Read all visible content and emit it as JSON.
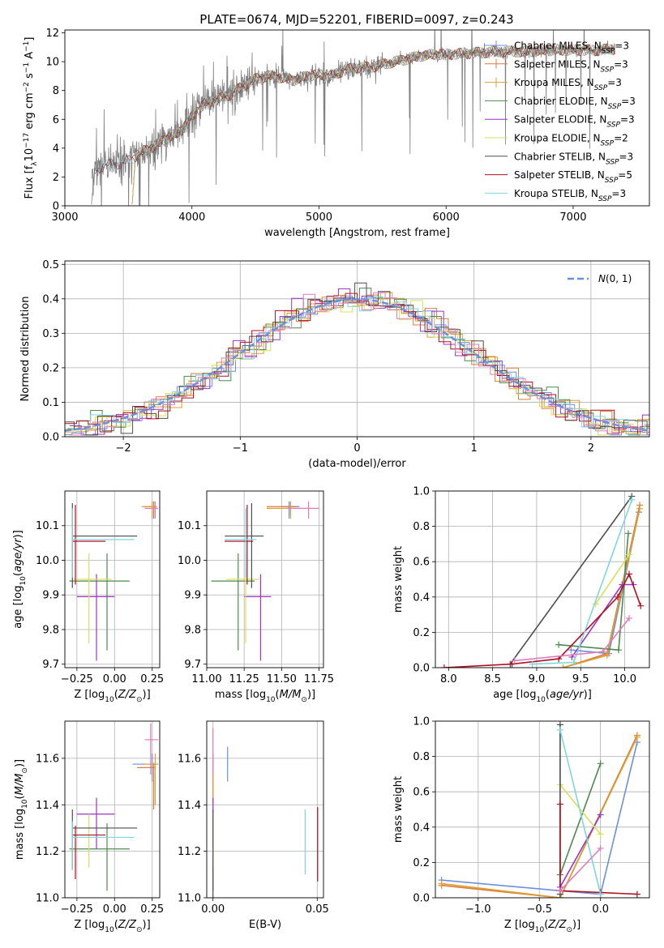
{
  "figure_title": "PLATE=0674, MJD=52201, FIBERID=0097, z=0.243",
  "colors": {
    "data": "#808080",
    "chabrier_miles": "#6f8fdc",
    "salpeter_miles": "#e07b39",
    "kroupa_miles": "#d9a030",
    "chabrier_elodie": "#4e8a4e",
    "salpeter_elodie": "#9b35c4",
    "kroupa_elodie": "#d8e05a",
    "chabrier_stelib": "#4d4d4d",
    "salpeter_stelib": "#b01020",
    "kroupa_stelib": "#7fd6e0",
    "pink": "#e07bc0",
    "gauss": "#6a8fdc",
    "grid": "#b0b0b0"
  },
  "chart_data": [
    {
      "id": "spectrum",
      "type": "line",
      "title": "PLATE=0674, MJD=52201, FIBERID=0097, z=0.243",
      "xlabel": "wavelength [Angstrom, rest frame]",
      "ylabel": "Flux [f_λ 10^-17 erg cm^-2 s^-1 A^-1]",
      "xlim": [
        3000,
        7600
      ],
      "ylim": [
        0,
        12.2
      ],
      "xticks": [
        3000,
        4000,
        5000,
        6000,
        7000
      ],
      "yticks": [
        0,
        2,
        4,
        6,
        8,
        10,
        12
      ],
      "grid": false,
      "legend_position": "right",
      "continuum": {
        "x": [
          3210,
          3300,
          3400,
          3500,
          3600,
          3700,
          3800,
          3900,
          4000,
          4100,
          4200,
          4300,
          4400,
          4500,
          4600,
          4700,
          4800,
          4900,
          5000,
          5100,
          5200,
          5300,
          5400,
          5500,
          5600,
          5700,
          5800,
          5900,
          6000,
          6200,
          6400,
          6600,
          6800,
          7000,
          7200,
          7330
        ],
        "y": [
          2.2,
          2.8,
          2.9,
          3.1,
          3.7,
          4.1,
          4.7,
          5.1,
          6.2,
          7.1,
          7.4,
          7.7,
          8.3,
          8.8,
          9.0,
          8.9,
          8.7,
          9.0,
          9.1,
          9.0,
          9.4,
          9.6,
          9.6,
          9.8,
          10.0,
          10.2,
          10.4,
          10.5,
          10.5,
          10.6,
          10.7,
          10.7,
          10.8,
          10.8,
          10.8,
          10.9
        ]
      },
      "legend": [
        {
          "label": "Chabrier MILES, N_SSP=3",
          "color": "chabrier_miles"
        },
        {
          "label": "Salpeter MILES, N_SSP=3",
          "color": "salpeter_miles"
        },
        {
          "label": "Kroupa MILES, N_SSP=3",
          "color": "kroupa_miles"
        },
        {
          "label": "Chabrier ELODIE, N_SSP=3",
          "color": "chabrier_elodie"
        },
        {
          "label": "Salpeter ELODIE, N_SSP=3",
          "color": "salpeter_elodie"
        },
        {
          "label": "Kroupa ELODIE, N_SSP=2",
          "color": "kroupa_elodie"
        },
        {
          "label": "Chabrier STELIB, N_SSP=3",
          "color": "chabrier_stelib"
        },
        {
          "label": "Salpeter STELIB, N_SSP=5",
          "color": "salpeter_stelib"
        },
        {
          "label": "Kroupa STELIB, N_SSP=3",
          "color": "kroupa_stelib"
        }
      ]
    },
    {
      "id": "residuals",
      "type": "histogram",
      "xlabel": "(data-model)/error",
      "ylabel": "Normed distribution",
      "xlim": [
        -2.5,
        2.5
      ],
      "ylim": [
        0,
        0.51
      ],
      "xticks": [
        -2,
        -1,
        0,
        1,
        2
      ],
      "yticks": [
        0.0,
        0.1,
        0.2,
        0.3,
        0.4,
        0.5
      ],
      "grid": true,
      "legend_position": "top-right",
      "legend_label": "N(0,1)",
      "bin_width": 0.1
    },
    {
      "id": "age_vs_Z",
      "type": "scatter",
      "xlabel": "Z [log10(Z/Z_sun)]",
      "ylabel": "age [log10(age/yr)]",
      "xlim": [
        -0.33,
        0.3
      ],
      "ylim": [
        9.69,
        10.2
      ],
      "xticks": [
        -0.25,
        0.0,
        0.25
      ],
      "yticks": [
        9.7,
        9.8,
        9.9,
        10.0,
        10.1
      ],
      "grid": true,
      "points": [
        {
          "color": "chabrier_miles",
          "x": 0.26,
          "y": 10.155,
          "x0": 0.23,
          "x1": 0.28,
          "y0": 10.12,
          "y1": 10.17
        },
        {
          "color": "salpeter_miles",
          "x": 0.26,
          "y": 10.155,
          "x0": 0.2,
          "x1": 0.27,
          "y0": 10.13,
          "y1": 10.17
        },
        {
          "color": "kroupa_miles",
          "x": 0.25,
          "y": 10.155,
          "x0": 0.18,
          "x1": 0.28,
          "y0": 10.12,
          "y1": 10.17
        },
        {
          "color": "chabrier_elodie",
          "x": -0.05,
          "y": 9.94,
          "x0": -0.3,
          "x1": 0.1,
          "y0": 9.74,
          "y1": 10.02
        },
        {
          "color": "salpeter_elodie",
          "x": -0.12,
          "y": 9.895,
          "x0": -0.25,
          "x1": 0.0,
          "y0": 9.71,
          "y1": 9.96
        },
        {
          "color": "kroupa_elodie",
          "x": -0.17,
          "y": 9.945,
          "x0": -0.27,
          "x1": -0.02,
          "y0": 9.76,
          "y1": 10.02
        },
        {
          "color": "chabrier_stelib",
          "x": -0.28,
          "y": 10.07,
          "x0": -0.28,
          "x1": 0.15,
          "y0": 9.92,
          "y1": 10.165
        },
        {
          "color": "salpeter_stelib",
          "x": -0.26,
          "y": 10.055,
          "x0": -0.28,
          "x1": -0.06,
          "y0": 9.93,
          "y1": 10.16
        },
        {
          "color": "kroupa_stelib",
          "x": -0.28,
          "y": 10.06,
          "x0": -0.28,
          "x1": 0.13,
          "y0": 9.95,
          "y1": 10.15
        },
        {
          "color": "pink",
          "x": 0.27,
          "y": 10.15,
          "x0": 0.2,
          "x1": 0.29,
          "y0": 10.12,
          "y1": 10.17
        }
      ]
    },
    {
      "id": "age_vs_mass",
      "type": "scatter",
      "xlabel": "mass [log10(M/M_sun)]",
      "ylabel": "",
      "xlim": [
        11.0,
        11.78
      ],
      "ylim": [
        9.69,
        10.2
      ],
      "xticks": [
        11.0,
        11.25,
        11.5,
        11.75
      ],
      "yticks": [
        9.7,
        9.8,
        9.9,
        10.0,
        10.1
      ],
      "grid": true,
      "points": [
        {
          "color": "chabrier_miles",
          "x": 11.55,
          "y": 10.155,
          "x0": 11.5,
          "x1": 11.62,
          "y0": 10.12,
          "y1": 10.17
        },
        {
          "color": "salpeter_miles",
          "x": 11.56,
          "y": 10.155,
          "x0": 11.4,
          "x1": 11.6,
          "y0": 10.13,
          "y1": 10.17
        },
        {
          "color": "kroupa_miles",
          "x": 11.56,
          "y": 10.15,
          "x0": 11.4,
          "x1": 11.6,
          "y0": 10.12,
          "y1": 10.17
        },
        {
          "color": "chabrier_elodie",
          "x": 11.21,
          "y": 9.94,
          "x0": 11.03,
          "x1": 11.32,
          "y0": 9.74,
          "y1": 10.02
        },
        {
          "color": "salpeter_elodie",
          "x": 11.36,
          "y": 9.895,
          "x0": 11.25,
          "x1": 11.43,
          "y0": 9.71,
          "y1": 9.96
        },
        {
          "color": "kroupa_elodie",
          "x": 11.26,
          "y": 9.945,
          "x0": 11.13,
          "x1": 11.35,
          "y0": 9.76,
          "y1": 10.02
        },
        {
          "color": "chabrier_stelib",
          "x": 11.3,
          "y": 10.07,
          "x0": 11.12,
          "x1": 11.38,
          "y0": 9.92,
          "y1": 10.165
        },
        {
          "color": "salpeter_stelib",
          "x": 11.27,
          "y": 10.055,
          "x0": 11.12,
          "x1": 11.31,
          "y0": 9.93,
          "y1": 10.16
        },
        {
          "color": "kroupa_stelib",
          "x": 11.26,
          "y": 10.06,
          "x0": 11.12,
          "x1": 11.33,
          "y0": 9.95,
          "y1": 10.15
        },
        {
          "color": "pink",
          "x": 11.68,
          "y": 10.15,
          "x0": 11.53,
          "x1": 11.75,
          "y0": 10.12,
          "y1": 10.17
        }
      ]
    },
    {
      "id": "mass_weight_vs_age",
      "type": "line",
      "xlabel": "age [log10(age/yr)]",
      "ylabel": "mass weight",
      "xlim": [
        7.85,
        10.28
      ],
      "ylim": [
        0,
        1.0
      ],
      "xticks": [
        8.0,
        8.5,
        9.0,
        9.5,
        10.0
      ],
      "yticks": [
        0.0,
        0.2,
        0.4,
        0.6,
        0.8,
        1.0
      ],
      "grid": true,
      "series": [
        {
          "color": "chabrier_miles",
          "x": [
            9.39,
            9.82,
            10.16
          ],
          "y": [
            0.1,
            0.08,
            0.88
          ]
        },
        {
          "color": "salpeter_miles",
          "x": [
            9.3,
            9.8,
            10.17
          ],
          "y": [
            0.0,
            0.08,
            0.92
          ]
        },
        {
          "color": "kroupa_miles",
          "x": [
            9.3,
            9.8,
            10.17
          ],
          "y": [
            0.0,
            0.07,
            0.9
          ]
        },
        {
          "color": "chabrier_elodie",
          "x": [
            9.25,
            9.93,
            10.04
          ],
          "y": [
            0.13,
            0.1,
            0.76
          ]
        },
        {
          "color": "salpeter_elodie",
          "x": [
            9.4,
            9.97,
            10.1
          ],
          "y": [
            0.06,
            0.47,
            0.47
          ]
        },
        {
          "color": "kroupa_elodie",
          "x": [
            9.67,
            10.05
          ],
          "y": [
            0.36,
            0.64
          ]
        },
        {
          "color": "chabrier_stelib",
          "x": [
            8.7,
            10.08
          ],
          "y": [
            0.02,
            0.97
          ]
        },
        {
          "color": "salpeter_stelib",
          "x": [
            7.95,
            8.72,
            9.25,
            9.92,
            10.05,
            10.18
          ],
          "y": [
            0.0,
            0.02,
            0.05,
            0.4,
            0.53,
            0.35
          ]
        },
        {
          "color": "kroupa_stelib",
          "x": [
            8.95,
            9.42,
            10.08
          ],
          "y": [
            0.02,
            0.03,
            0.95
          ]
        },
        {
          "color": "pink",
          "x": [
            8.75,
            9.75,
            10.05
          ],
          "y": [
            0.04,
            0.09,
            0.28
          ]
        }
      ]
    },
    {
      "id": "mass_vs_Z",
      "type": "scatter",
      "xlabel": "Z [log10(Z/Z_sun)]",
      "ylabel": "mass [log10(M/M_sun)]",
      "xlim": [
        -0.33,
        0.3
      ],
      "ylim": [
        11.0,
        11.76
      ],
      "xticks": [
        -0.25,
        0.0,
        0.25
      ],
      "yticks": [
        11.0,
        11.2,
        11.4,
        11.6
      ],
      "grid": true,
      "points": [
        {
          "color": "chabrier_miles",
          "x": 0.25,
          "y": 11.575,
          "x0": 0.12,
          "x1": 0.29,
          "y0": 11.5,
          "y1": 11.62
        },
        {
          "color": "salpeter_miles",
          "x": 0.26,
          "y": 11.56,
          "x0": 0.15,
          "x1": 0.27,
          "y0": 11.38,
          "y1": 11.58
        },
        {
          "color": "kroupa_miles",
          "x": 0.27,
          "y": 11.575,
          "x0": 0.2,
          "x1": 0.29,
          "y0": 11.4,
          "y1": 11.62
        },
        {
          "color": "chabrier_elodie",
          "x": -0.05,
          "y": 11.21,
          "x0": -0.3,
          "x1": 0.1,
          "y0": 11.03,
          "y1": 11.32
        },
        {
          "color": "salpeter_elodie",
          "x": -0.12,
          "y": 11.36,
          "x0": -0.25,
          "x1": 0.0,
          "y0": 11.21,
          "y1": 11.43
        },
        {
          "color": "kroupa_elodie",
          "x": -0.17,
          "y": 11.26,
          "x0": -0.27,
          "x1": -0.02,
          "y0": 11.13,
          "y1": 11.36
        },
        {
          "color": "chabrier_stelib",
          "x": -0.28,
          "y": 11.3,
          "x0": -0.28,
          "x1": 0.15,
          "y0": 11.12,
          "y1": 11.38
        },
        {
          "color": "salpeter_stelib",
          "x": -0.26,
          "y": 11.27,
          "x0": -0.28,
          "x1": -0.06,
          "y0": 11.08,
          "y1": 11.31
        },
        {
          "color": "kroupa_stelib",
          "x": -0.28,
          "y": 11.26,
          "x0": -0.28,
          "x1": 0.13,
          "y0": 11.12,
          "y1": 11.33
        },
        {
          "color": "pink",
          "x": 0.24,
          "y": 11.68,
          "x0": 0.2,
          "x1": 0.29,
          "y0": 11.53,
          "y1": 11.75
        }
      ]
    },
    {
      "id": "mass_vs_ebv",
      "type": "scatter",
      "xlabel": "E(B-V)",
      "ylabel": "",
      "xlim": [
        -0.003,
        0.053
      ],
      "ylim": [
        11.0,
        11.76
      ],
      "xticks": [
        0.0,
        0.05
      ],
      "yticks": [
        11.0,
        11.2,
        11.4,
        11.6
      ],
      "grid": true,
      "points": [
        {
          "color": "chabrier_miles",
          "x": 0.007,
          "y": 11.57,
          "y0": 11.5,
          "y1": 11.65
        },
        {
          "color": "salpeter_miles",
          "x": 0.0,
          "y": 11.56,
          "y0": 11.4,
          "y1": 11.62
        },
        {
          "color": "kroupa_miles",
          "x": 0.0,
          "y": 11.57,
          "y0": 11.4,
          "y1": 11.62
        },
        {
          "color": "chabrier_elodie",
          "x": 0.0,
          "y": 11.21,
          "y0": 11.03,
          "y1": 11.32
        },
        {
          "color": "salpeter_elodie",
          "x": 0.0,
          "y": 11.36,
          "y0": 11.21,
          "y1": 11.43
        },
        {
          "color": "kroupa_elodie",
          "x": 0.0,
          "y": 11.26,
          "y0": 11.13,
          "y1": 11.36
        },
        {
          "color": "chabrier_stelib",
          "x": 0.0,
          "y": 11.2,
          "y0": 11.0,
          "y1": 11.38
        },
        {
          "color": "salpeter_stelib",
          "x": 0.0502,
          "y": 11.25,
          "y0": 11.07,
          "y1": 11.39
        },
        {
          "color": "kroupa_stelib",
          "x": 0.0442,
          "y": 11.26,
          "y0": 11.1,
          "y1": 11.38
        },
        {
          "color": "pink",
          "x": 0.0,
          "y": 11.68,
          "y0": 11.53,
          "y1": 11.73
        }
      ]
    },
    {
      "id": "mass_weight_vs_Z",
      "type": "line",
      "xlabel": "Z [log10(Z/Z_sun)]",
      "ylabel": "mass weight",
      "xlim": [
        -1.35,
        0.4
      ],
      "ylim": [
        0,
        1.0
      ],
      "xticks": [
        -1.0,
        -0.5,
        0.0
      ],
      "yticks": [
        0.0,
        0.2,
        0.4,
        0.6,
        0.8,
        1.0
      ],
      "grid": true,
      "series": [
        {
          "color": "chabrier_miles",
          "x": [
            -1.3,
            -0.33,
            0.0,
            0.3
          ],
          "y": [
            0.1,
            0.04,
            0.02,
            0.88
          ]
        },
        {
          "color": "salpeter_miles",
          "x": [
            -1.3,
            -0.33,
            0.3
          ],
          "y": [
            0.07,
            0.0,
            0.92
          ]
        },
        {
          "color": "kroupa_miles",
          "x": [
            -1.3,
            -0.33,
            0.3
          ],
          "y": [
            0.08,
            0.0,
            0.91
          ]
        },
        {
          "color": "chabrier_elodie",
          "x": [
            -0.33,
            0.0
          ],
          "y": [
            0.13,
            0.76
          ]
        },
        {
          "color": "salpeter_elodie",
          "x": [
            -0.33,
            0.0
          ],
          "y": [
            0.06,
            0.47
          ]
        },
        {
          "color": "kroupa_elodie",
          "x": [
            -0.33,
            0.0
          ],
          "y": [
            0.64,
            0.36
          ]
        },
        {
          "color": "chabrier_stelib",
          "x": [
            -0.33,
            -0.33
          ],
          "y": [
            0.02,
            0.98
          ]
        },
        {
          "color": "salpeter_stelib",
          "x": [
            -0.33,
            -0.33,
            0.0,
            0.3
          ],
          "y": [
            0.53,
            0.04,
            0.03,
            0.02
          ]
        },
        {
          "color": "kroupa_stelib",
          "x": [
            -0.33,
            0.0
          ],
          "y": [
            0.95,
            0.02
          ]
        },
        {
          "color": "pink",
          "x": [
            -0.33,
            0.0
          ],
          "y": [
            0.04,
            0.28
          ]
        }
      ]
    }
  ]
}
